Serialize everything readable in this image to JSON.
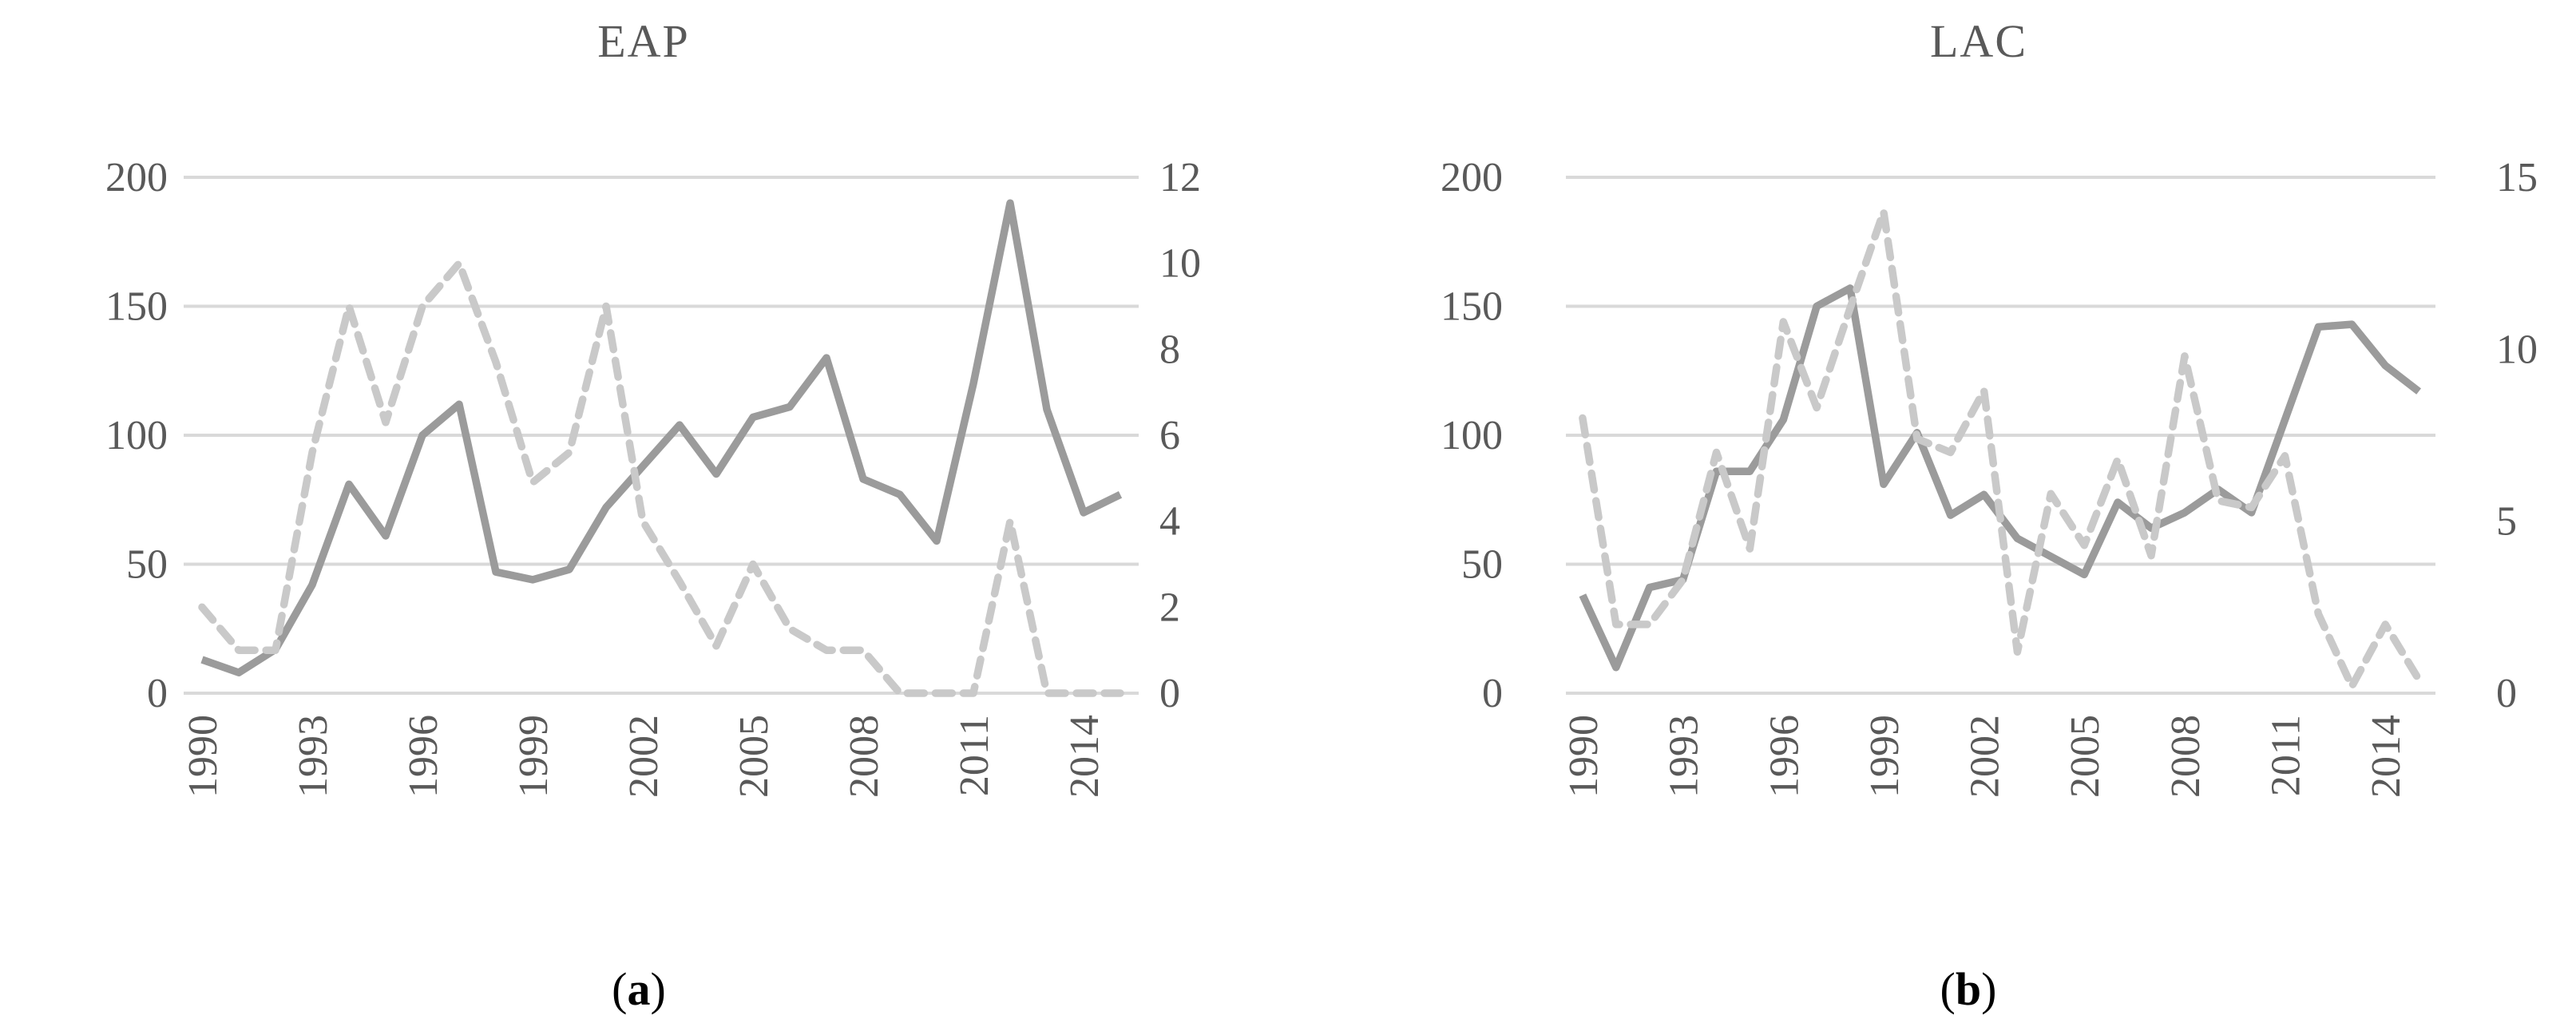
{
  "figure": {
    "panels": [
      {
        "title": "EAP",
        "caption_open": "(",
        "caption_letter": "a",
        "caption_close": ")"
      },
      {
        "title": "LAC",
        "caption_open": "(",
        "caption_letter": "b",
        "caption_close": ")"
      }
    ]
  },
  "colors": {
    "solid_series": "#9b9b9b",
    "dashed_series": "#c9c9c9",
    "gridline": "#d9d9d9",
    "axis_text": "#595959",
    "caption_text": "#000000"
  },
  "chart_data": [
    {
      "type": "line",
      "title": "EAP",
      "caption": "(a)",
      "x": [
        1990,
        1991,
        1992,
        1993,
        1994,
        1995,
        1996,
        1997,
        1998,
        1999,
        2000,
        2001,
        2002,
        2003,
        2004,
        2005,
        2006,
        2007,
        2008,
        2009,
        2010,
        2011,
        2012,
        2013,
        2014,
        2015
      ],
      "x_tick_labels": [
        "1990",
        "1993",
        "1996",
        "1999",
        "2002",
        "2005",
        "2008",
        "2011",
        "2014"
      ],
      "series": [
        {
          "name": "solid-left-axis",
          "axis": "left",
          "style": "solid",
          "values": [
            13,
            8,
            17,
            42,
            81,
            61,
            100,
            112,
            47,
            44,
            48,
            72,
            88,
            104,
            85,
            107,
            111,
            130,
            83,
            77,
            59,
            120,
            190,
            110,
            70,
            77
          ]
        },
        {
          "name": "dashed-right-axis",
          "axis": "right",
          "style": "dashed",
          "values": [
            2.0,
            1.0,
            1.0,
            5.6,
            9.0,
            6.3,
            9.0,
            10.0,
            7.7,
            4.9,
            5.6,
            9.0,
            4.0,
            2.6,
            1.1,
            3.0,
            1.5,
            1.0,
            1.0,
            0,
            0,
            0,
            4.0,
            0,
            0,
            0
          ]
        }
      ],
      "left_ylim": [
        0,
        200
      ],
      "left_ticks": [
        200,
        150,
        100,
        50,
        0
      ],
      "right_ylim": [
        0,
        12
      ],
      "right_ticks": [
        12,
        10,
        8,
        6,
        4,
        2,
        0
      ],
      "grid": "horizontal",
      "legend": "none",
      "x_label_rotation": -90
    },
    {
      "type": "line",
      "title": "LAC",
      "caption": "(b)",
      "x": [
        1990,
        1991,
        1992,
        1993,
        1994,
        1995,
        1996,
        1997,
        1998,
        1999,
        2000,
        2001,
        2002,
        2003,
        2004,
        2005,
        2006,
        2007,
        2008,
        2009,
        2010,
        2011,
        2012,
        2013,
        2014,
        2015
      ],
      "x_tick_labels": [
        "1990",
        "1993",
        "1996",
        "1999",
        "2002",
        "2005",
        "2008",
        "2011",
        "2014"
      ],
      "series": [
        {
          "name": "solid-left-axis",
          "axis": "left",
          "style": "solid",
          "values": [
            38,
            10,
            41,
            44,
            86,
            86,
            106,
            150,
            157,
            81,
            101,
            69,
            77,
            60,
            53,
            46,
            74,
            64,
            70,
            79,
            70,
            106,
            142,
            143,
            127,
            117
          ]
        },
        {
          "name": "dashed-right-axis",
          "axis": "right",
          "style": "dashed",
          "values": [
            8.0,
            2.0,
            2.0,
            3.3,
            7.0,
            4.2,
            10.8,
            8.3,
            11.2,
            14.0,
            7.4,
            7.0,
            8.8,
            1.2,
            5.8,
            4.3,
            6.8,
            4.0,
            9.8,
            5.6,
            5.4,
            6.9,
            2.3,
            0.2,
            2.0,
            0.4
          ]
        }
      ],
      "left_ylim": [
        0,
        200
      ],
      "left_ticks": [
        200,
        150,
        100,
        50,
        0
      ],
      "right_ylim": [
        0,
        15
      ],
      "right_ticks": [
        15,
        10,
        5,
        0
      ],
      "grid": "horizontal",
      "legend": "none",
      "x_label_rotation": -90
    }
  ]
}
